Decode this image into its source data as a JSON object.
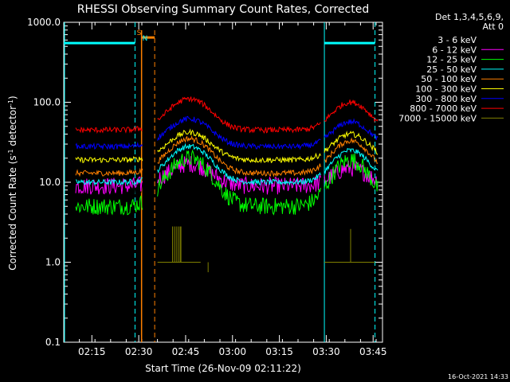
{
  "chart_data": {
    "type": "line",
    "title": "RHESSI Observing Summary Count Rates, Corrected",
    "xlabel": "Start Time (26-Nov-09 02:11:22)",
    "ylabel_main": "Corrected Count Rate (s",
    "ylabel_sup1": "-1",
    "ylabel_mid": " detector",
    "ylabel_sup2": "-1",
    "ylabel_end": ")",
    "yscale": "log",
    "ylim": [
      0.1,
      1000
    ],
    "xlim_minutes": [
      2.1,
      3.8
    ],
    "yticks": [
      {
        "value": 1000,
        "label": "1000.0"
      },
      {
        "value": 100,
        "label": "100.0"
      },
      {
        "value": 10,
        "label": "10.0"
      },
      {
        "value": 1,
        "label": "1.0"
      },
      {
        "value": 0.1,
        "label": "0.1"
      }
    ],
    "xticks": [
      {
        "minutes": 2.25,
        "label": "02:15"
      },
      {
        "minutes": 2.5,
        "label": "02:30"
      },
      {
        "minutes": 2.75,
        "label": "02:45"
      },
      {
        "minutes": 3.0,
        "label": "03:00"
      },
      {
        "minutes": 3.25,
        "label": "03:15"
      },
      {
        "minutes": 3.5,
        "label": "03:30"
      },
      {
        "minutes": 3.75,
        "label": "03:45"
      }
    ],
    "legend_header": [
      "Det 1,3,4,5,6,9,",
      "Att 0"
    ],
    "series": [
      {
        "name": "3 - 6 keV",
        "color": "#000000",
        "base": 8.5,
        "peak": 10,
        "peak2": 9.5
      },
      {
        "name": "6 - 12 keV",
        "color": "#ff00ff",
        "base": 9,
        "peak": 17,
        "peak2": 15
      },
      {
        "name": "12 - 25 keV",
        "color": "#00ff00",
        "base": 5,
        "peak": 20,
        "peak2": 19
      },
      {
        "name": "25 - 50 keV",
        "color": "#00ffff",
        "base": 10,
        "peak": 28,
        "peak2": 25
      },
      {
        "name": "50 - 100 keV",
        "color": "#ff8000",
        "base": 13,
        "peak": 35,
        "peak2": 33
      },
      {
        "name": "100 - 300 keV",
        "color": "#ffff00",
        "base": 19,
        "peak": 42,
        "peak2": 40
      },
      {
        "name": "300 - 800 keV",
        "color": "#0000ff",
        "base": 28,
        "peak": 62,
        "peak2": 57
      },
      {
        "name": "800 - 7000 keV",
        "color": "#ff0000",
        "base": 45,
        "peak": 110,
        "peak2": 100
      },
      {
        "name": "7000 - 15000 keV",
        "color": "#808000",
        "base": 1.0,
        "peak": 2.8,
        "peak2": 2.6
      }
    ],
    "annotations": {
      "saa_label": "S",
      "night_label": "N",
      "saa_top_value": 550,
      "cyan_boundaries_minutes": [
        2.1,
        2.48,
        3.49,
        3.76
      ],
      "orange_marks_minutes": [
        2.515,
        2.585
      ]
    },
    "timestamp": "16-Oct-2021 14:33"
  }
}
